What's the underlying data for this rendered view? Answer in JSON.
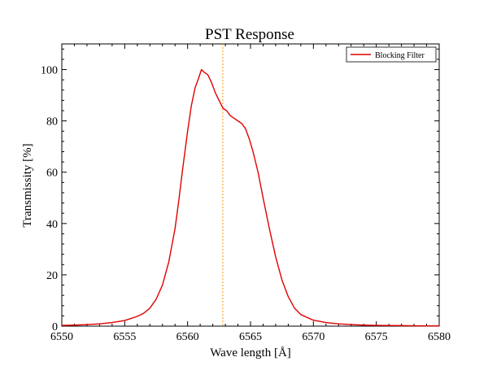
{
  "chart_data": {
    "type": "line",
    "title": "PST Response",
    "xlabel": "Wave length [Å]",
    "ylabel": "Transmissity [%]",
    "xlim": [
      6550,
      6580
    ],
    "ylim": [
      0,
      110
    ],
    "x_ticks": [
      6550,
      6555,
      6560,
      6565,
      6570,
      6575,
      6580
    ],
    "y_ticks": [
      0,
      20,
      40,
      60,
      80,
      100
    ],
    "grid": false,
    "legend_position": "top-right",
    "reference_line": {
      "x": 6562.8,
      "color": "#ff9900",
      "style": "dotted"
    },
    "series": [
      {
        "name": "Blocking Filter",
        "color": "#e00000",
        "x": [
          6550.0,
          6551.0,
          6552.0,
          6553.0,
          6554.0,
          6555.0,
          6556.0,
          6556.5,
          6557.0,
          6557.5,
          6558.0,
          6558.5,
          6559.0,
          6559.3,
          6559.6,
          6560.0,
          6560.3,
          6560.6,
          6560.9,
          6561.1,
          6561.3,
          6561.6,
          6561.9,
          6562.2,
          6562.5,
          6562.8,
          6563.1,
          6563.4,
          6563.7,
          6564.0,
          6564.3,
          6564.6,
          6564.9,
          6565.2,
          6565.6,
          6566.0,
          6566.5,
          6567.0,
          6567.5,
          6568.0,
          6568.5,
          6569.0,
          6570.0,
          6571.0,
          6572.0,
          6573.0,
          6574.0,
          6575.0,
          6576.0,
          6577.0,
          6578.0,
          6579.0,
          6580.0
        ],
        "values": [
          0.3,
          0.4,
          0.6,
          0.9,
          1.4,
          2.2,
          3.8,
          5.0,
          7.0,
          10.5,
          16.0,
          25.0,
          38.0,
          49.0,
          61.0,
          76.0,
          86.0,
          93.0,
          97.0,
          100.0,
          99.0,
          98.0,
          95.0,
          91.0,
          88.0,
          85.0,
          84.0,
          82.0,
          81.0,
          80.0,
          79.0,
          77.0,
          73.0,
          68.0,
          60.0,
          50.0,
          38.0,
          27.0,
          18.0,
          11.5,
          7.0,
          4.5,
          2.3,
          1.4,
          0.9,
          0.6,
          0.4,
          0.3,
          0.25,
          0.2,
          0.15,
          0.1,
          0.1
        ]
      }
    ]
  }
}
